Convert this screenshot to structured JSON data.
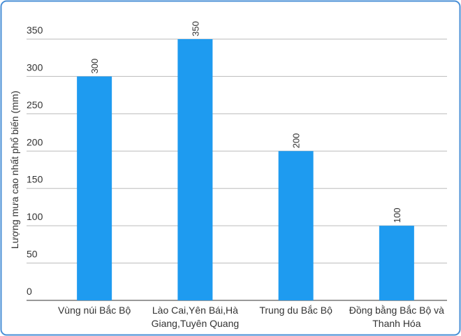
{
  "chart_data": {
    "type": "bar",
    "y_label": "Lượng mưa cao nhất phổ biến (mm)",
    "categories": [
      "Vùng núi Bắc Bộ",
      "Lào Cai,Yên Bái,Hà Giang,Tuyên Quang",
      "Trung du Bắc Bộ",
      "Đồng bằng Bắc Bộ và Thanh Hóa"
    ],
    "values": [
      300,
      350,
      200,
      100
    ],
    "color": "#1e9bf0",
    "ylim": [
      0,
      350
    ],
    "yticks": [
      0,
      50,
      100,
      150,
      200,
      250,
      300,
      350
    ],
    "grid": true
  }
}
